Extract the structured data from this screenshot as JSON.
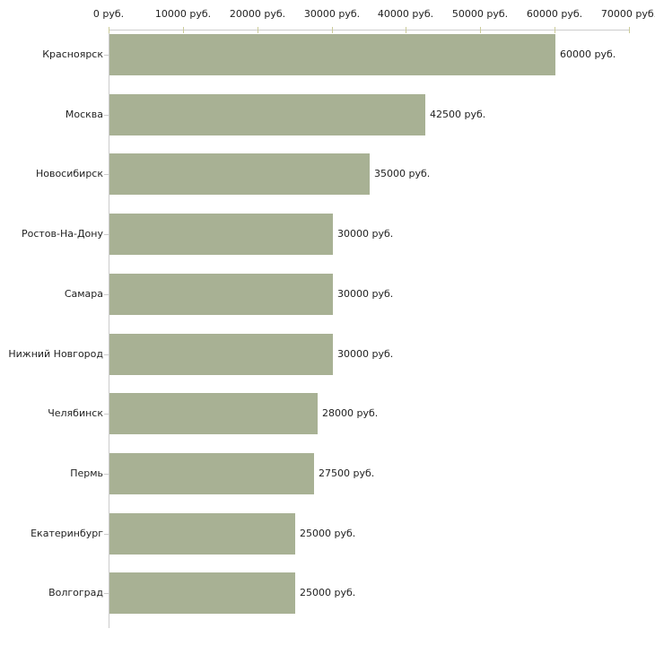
{
  "chart_data": {
    "type": "bar",
    "orientation": "horizontal",
    "title": "",
    "unit": "руб.",
    "categories": [
      "Красноярск",
      "Москва",
      "Новосибирск",
      "Ростов-На-Дону",
      "Самара",
      "Нижний Новгород",
      "Челябинск",
      "Пермь",
      "Екатеринбург",
      "Волгоград"
    ],
    "values": [
      60000,
      42500,
      35000,
      30000,
      30000,
      30000,
      28000,
      27500,
      25000,
      25000
    ],
    "value_labels": [
      "60000 руб.",
      "42500 руб.",
      "35000 руб.",
      "30000 руб.",
      "30000 руб.",
      "30000 руб.",
      "28000 руб.",
      "27500 руб.",
      "25000 руб.",
      "25000 руб."
    ],
    "x_axis": {
      "position": "top",
      "min": 0,
      "max": 70000,
      "tick_interval": 10000,
      "tick_labels": [
        "0 руб.",
        "10000 руб.",
        "20000 руб.",
        "30000 руб.",
        "40000 руб.",
        "50000 руб.",
        "60000 руб.",
        "70000 руб."
      ]
    },
    "legend": "none",
    "grid": "off",
    "colors": {
      "bar": "#a8b194",
      "axis": "#cccccc",
      "tick": "#cccc99",
      "text": "#1f1f1f",
      "background": "#ffffff"
    }
  }
}
